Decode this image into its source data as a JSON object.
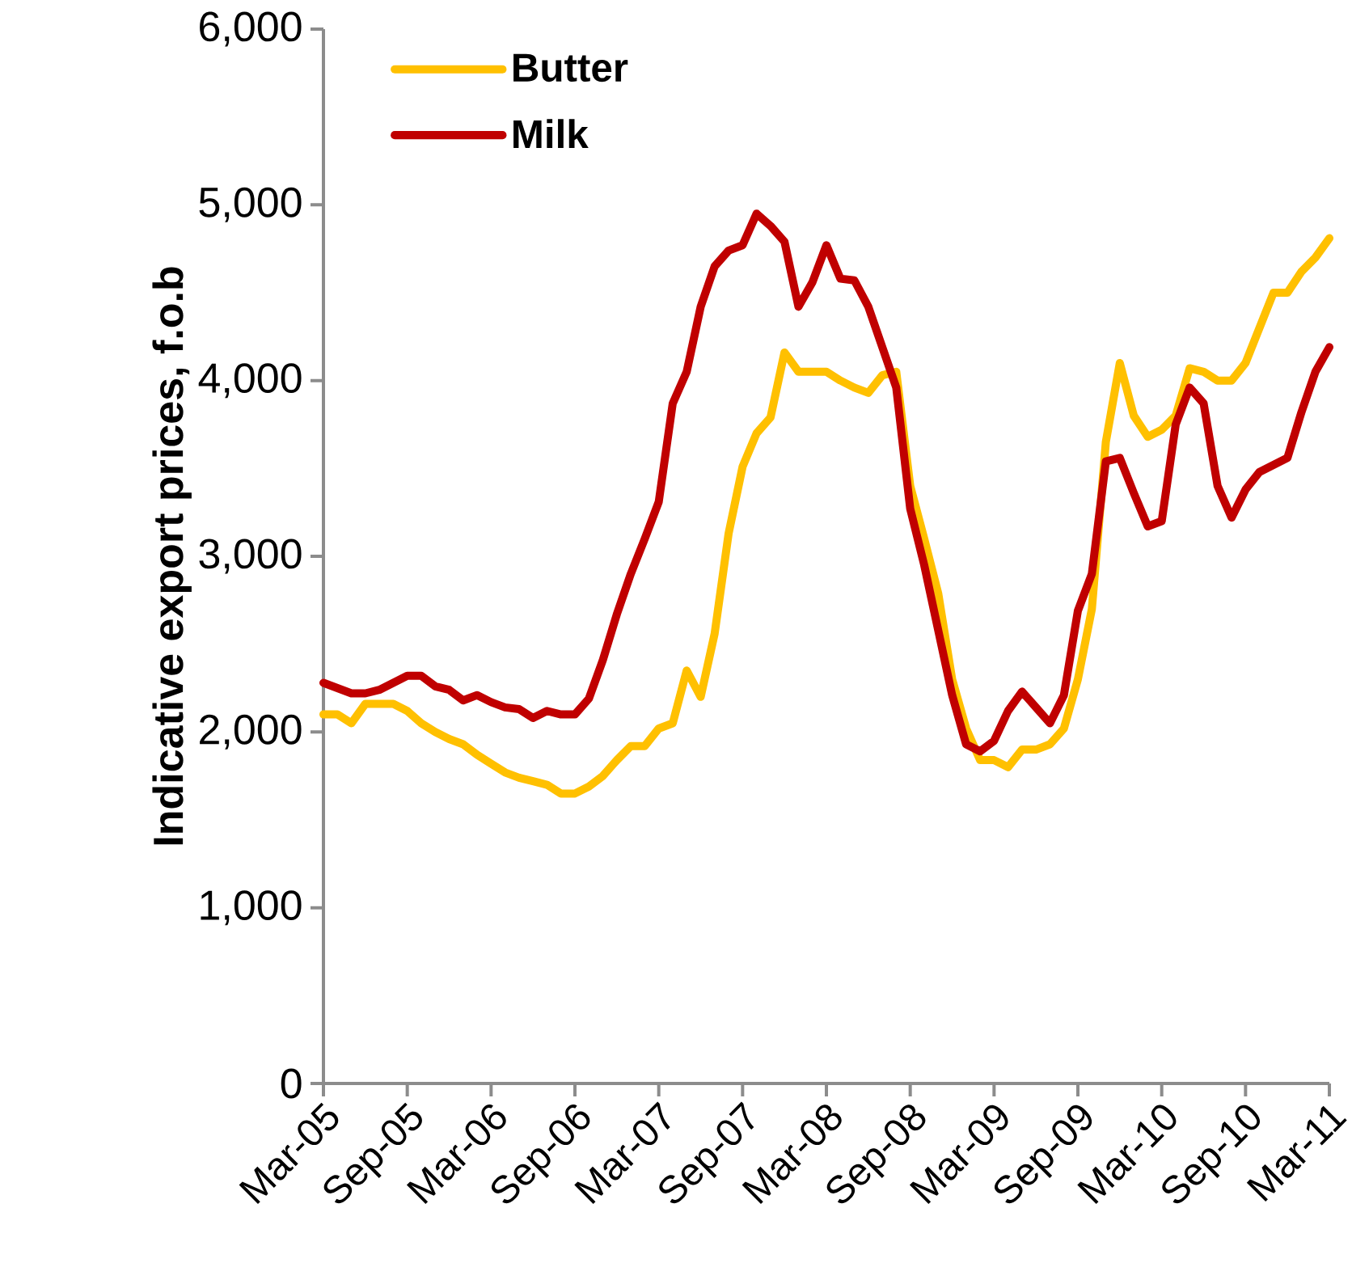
{
  "chart_data": {
    "type": "line",
    "ylabel": "Indicative export prices, f.o.b",
    "categories": [
      "Mar-05",
      null,
      null,
      null,
      null,
      null,
      "Sep-05",
      null,
      null,
      null,
      null,
      null,
      "Mar-06",
      null,
      null,
      null,
      null,
      null,
      "Sep-06",
      null,
      null,
      null,
      null,
      null,
      "Mar-07",
      null,
      null,
      null,
      null,
      null,
      "Sep-07",
      null,
      null,
      null,
      null,
      null,
      "Mar-08",
      null,
      null,
      null,
      null,
      null,
      "Sep-08",
      null,
      null,
      null,
      null,
      null,
      "Mar-09",
      null,
      null,
      null,
      null,
      null,
      "Sep-09",
      null,
      null,
      null,
      null,
      null,
      "Mar-10",
      null,
      null,
      null,
      null,
      null,
      "Sep-10",
      null,
      null,
      null,
      null,
      null,
      "Mar-11"
    ],
    "series": [
      {
        "name": "Butter",
        "color": "#ffc000",
        "values": [
          2100,
          2100,
          2050,
          2160,
          2160,
          2160,
          2120,
          2050,
          2000,
          1960,
          1930,
          1870,
          1820,
          1770,
          1740,
          1720,
          1700,
          1650,
          1650,
          1690,
          1750,
          1840,
          1920,
          1920,
          2020,
          2050,
          2350,
          2200,
          2560,
          3130,
          3510,
          3700,
          3790,
          4160,
          4050,
          4050,
          4050,
          4000,
          3960,
          3930,
          4030,
          4050,
          3400,
          3100,
          2790,
          2300,
          2020,
          1840,
          1840,
          1800,
          1900,
          1900,
          1930,
          2020,
          2300,
          2700,
          3650,
          4100,
          3800,
          3680,
          3720,
          3800,
          4070,
          4050,
          4000,
          4000,
          4100,
          4300,
          4500,
          4500,
          4620,
          4700,
          4810
        ]
      },
      {
        "name": "Milk",
        "color": "#c00000",
        "values": [
          2280,
          2250,
          2220,
          2220,
          2240,
          2280,
          2320,
          2320,
          2260,
          2240,
          2180,
          2210,
          2170,
          2140,
          2130,
          2080,
          2120,
          2100,
          2100,
          2190,
          2410,
          2670,
          2900,
          3100,
          3310,
          3870,
          4050,
          4420,
          4650,
          4740,
          4770,
          4950,
          4880,
          4790,
          4420,
          4560,
          4770,
          4580,
          4570,
          4420,
          4190,
          3960,
          3270,
          2950,
          2580,
          2210,
          1930,
          1890,
          1950,
          2120,
          2230,
          2140,
          2050,
          2210,
          2690,
          2900,
          3540,
          3560,
          3360,
          3170,
          3200,
          3750,
          3960,
          3870,
          3400,
          3220,
          3380,
          3480,
          3520,
          3560,
          3820,
          4050,
          4190
        ]
      }
    ],
    "ylim": [
      0,
      6000
    ],
    "yticks": [
      {
        "value": 0,
        "label": "0"
      },
      {
        "value": 1000,
        "label": "1,000"
      },
      {
        "value": 2000,
        "label": "2,000"
      },
      {
        "value": 3000,
        "label": "3,000"
      },
      {
        "value": 4000,
        "label": "4,000"
      },
      {
        "value": 5000,
        "label": "5,000"
      },
      {
        "value": 6000,
        "label": "6,000"
      }
    ],
    "legend": "top left"
  }
}
